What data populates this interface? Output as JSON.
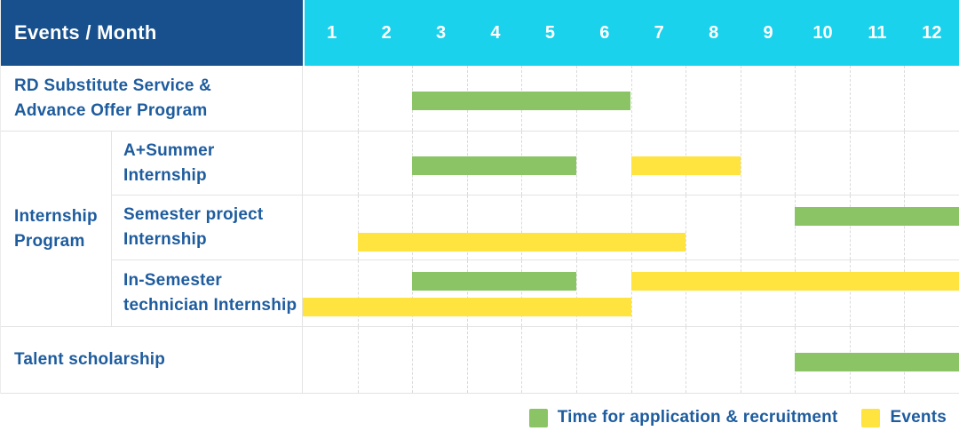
{
  "header": {
    "title": "Events / Month"
  },
  "colors": {
    "header_bg": "#17508C",
    "months_bg": "#1AD2EC",
    "text_blue": "#1E5C9E",
    "green": "#8AC464",
    "yellow": "#FFE33E"
  },
  "legend": [
    {
      "label": "Time for application & recruitment",
      "color": "green"
    },
    {
      "label": "Events",
      "color": "yellow"
    }
  ],
  "chart_data": {
    "type": "bar",
    "subtype": "gantt",
    "title": "Events / Month",
    "xlabel": "Month",
    "x_range": [
      1,
      12
    ],
    "months": [
      "1",
      "2",
      "3",
      "4",
      "5",
      "6",
      "7",
      "8",
      "9",
      "10",
      "11",
      "12"
    ],
    "grid": "vertical-dashed",
    "legend_position": "bottom-right",
    "sections": [
      {
        "type": "row",
        "label": "RD Substitute Service & Advance Offer Program",
        "label_lines": [
          "RD Substitute Service &",
          "Advance Offer Program"
        ],
        "lanes": [
          [
            {
              "color": "green",
              "start": 3,
              "end": 6
            }
          ]
        ]
      },
      {
        "type": "group",
        "label": "Internship Program",
        "label_lines": [
          "Internship",
          "Program"
        ],
        "rows": [
          {
            "label": "A+Summer Internship",
            "label_lines": [
              "A+Summer",
              "Internship"
            ],
            "lanes": [
              [
                {
                  "color": "green",
                  "start": 3,
                  "end": 5
                },
                {
                  "color": "yellow",
                  "start": 7,
                  "end": 8
                }
              ]
            ]
          },
          {
            "label": "Semester project Internship",
            "label_lines": [
              "Semester project",
              "Internship"
            ],
            "lanes": [
              [
                {
                  "color": "green",
                  "start": 10,
                  "end": 12
                }
              ],
              [
                {
                  "color": "yellow",
                  "start": 2,
                  "end": 7
                }
              ]
            ]
          },
          {
            "label": "In-Semester technician Internship",
            "label_lines": [
              "In-Semester",
              "technician Internship"
            ],
            "lanes": [
              [
                {
                  "color": "green",
                  "start": 3,
                  "end": 5
                },
                {
                  "color": "yellow",
                  "start": 7,
                  "end": 12
                }
              ],
              [
                {
                  "color": "yellow",
                  "start": 1,
                  "end": 6
                }
              ]
            ]
          }
        ]
      },
      {
        "type": "row",
        "label": "Talent scholarship",
        "label_lines": [
          "Talent scholarship"
        ],
        "lanes": [
          [
            {
              "color": "green",
              "start": 10,
              "end": 12
            }
          ]
        ]
      }
    ]
  }
}
